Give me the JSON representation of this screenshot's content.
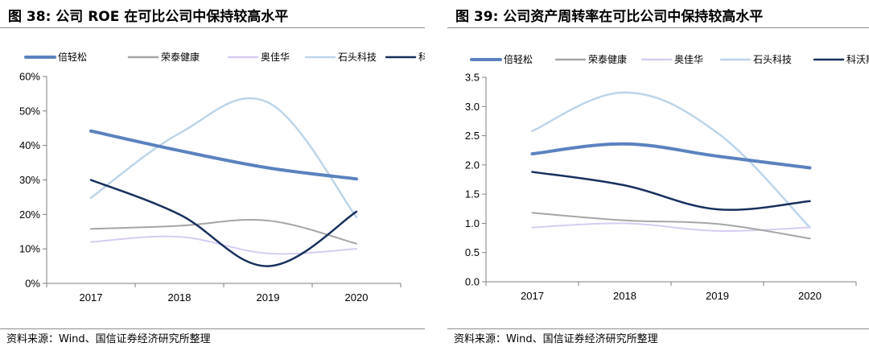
{
  "charts": [
    {
      "title": "图 38:  公司 ROE 在可比公司中保持较高水平",
      "source": "资料来源：Wind、国信证券经济研究所整理"
    },
    {
      "title": "图 39:  公司资产周转率在可比公司中保持较高水平",
      "source": "资料来源：Wind、国信证券经济研究所整理"
    }
  ],
  "chart_data": [
    {
      "type": "line",
      "title": "图 38:  公司 ROE 在可比公司中保持较高水平",
      "categories": [
        "2017",
        "2018",
        "2019",
        "2020"
      ],
      "ylim": [
        0,
        60
      ],
      "yticks": [
        0,
        10,
        20,
        30,
        40,
        50,
        60
      ],
      "ytick_labels": [
        "0%",
        "10%",
        "20%",
        "30%",
        "40%",
        "50%",
        "60%"
      ],
      "legend_position": "top",
      "series": [
        {
          "name": "倍轻松",
          "color": "#5b82bf",
          "width": 4,
          "values": [
            44.2,
            38.5,
            33.5,
            30.3
          ]
        },
        {
          "name": "荣泰健康",
          "color": "#a6a6a6",
          "width": 2,
          "values": [
            15.8,
            16.7,
            18.2,
            11.5
          ]
        },
        {
          "name": "奥佳华",
          "color": "#d7ccf2",
          "width": 2,
          "values": [
            12.0,
            13.5,
            8.7,
            10.0
          ]
        },
        {
          "name": "石头科技",
          "color": "#bcd5ea",
          "width": 2.5,
          "values": [
            24.8,
            43.5,
            52.5,
            19.2
          ]
        },
        {
          "name": "科沃斯",
          "color": "#17305c",
          "width": 2.5,
          "values": [
            30.0,
            20.0,
            5.0,
            20.8
          ]
        }
      ]
    },
    {
      "type": "line",
      "title": "图 39:  公司资产周转率在可比公司中保持较高水平",
      "categories": [
        "2017",
        "2018",
        "2019",
        "2020"
      ],
      "ylim": [
        0,
        3.5
      ],
      "yticks": [
        0,
        0.5,
        1,
        1.5,
        2,
        2.5,
        3,
        3.5
      ],
      "ytick_labels": [
        "0.0",
        "0.5",
        "1.0",
        "1.5",
        "2.0",
        "2.5",
        "3.0",
        "3.5"
      ],
      "legend_position": "top",
      "series": [
        {
          "name": "倍轻松",
          "color": "#5b82bf",
          "width": 4,
          "values": [
            2.19,
            2.36,
            2.15,
            1.95
          ]
        },
        {
          "name": "荣泰健康",
          "color": "#a6a6a6",
          "width": 2,
          "values": [
            1.18,
            1.05,
            0.99,
            0.74
          ]
        },
        {
          "name": "奥佳华",
          "color": "#d7ccf2",
          "width": 2,
          "values": [
            0.93,
            1.0,
            0.87,
            0.93
          ]
        },
        {
          "name": "石头科技",
          "color": "#bcd5ea",
          "width": 2.5,
          "values": [
            2.58,
            3.24,
            2.55,
            0.93
          ]
        },
        {
          "name": "科沃斯",
          "color": "#17305c",
          "width": 2.5,
          "values": [
            1.88,
            1.65,
            1.24,
            1.38
          ]
        }
      ]
    }
  ]
}
